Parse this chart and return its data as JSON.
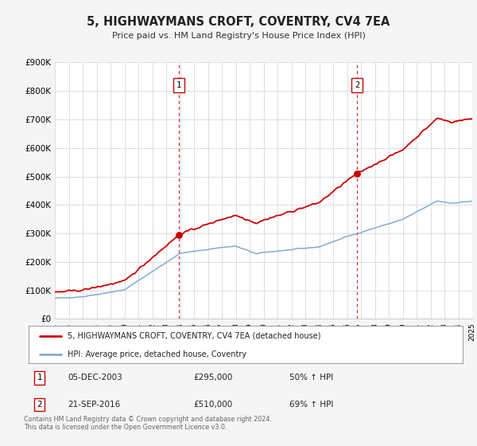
{
  "title": "5, HIGHWAYMANS CROFT, COVENTRY, CV4 7EA",
  "subtitle": "Price paid vs. HM Land Registry's House Price Index (HPI)",
  "background_color": "#f5f5f5",
  "plot_bg_color": "#ffffff",
  "grid_color": "#dddddd",
  "red_line_color": "#cc0000",
  "blue_line_color": "#88aacc",
  "sale1_year": 2003.92,
  "sale1_price": 295000,
  "sale1_label": "05-DEC-2003",
  "sale1_pct": "50% ↑ HPI",
  "sale2_year": 2016.72,
  "sale2_price": 510000,
  "sale2_label": "21-SEP-2016",
  "sale2_pct": "69% ↑ HPI",
  "xmin": 1995,
  "xmax": 2025,
  "ymin": 0,
  "ymax": 900000,
  "legend_label_red": "5, HIGHWAYMANS CROFT, COVENTRY, CV4 7EA (detached house)",
  "legend_label_blue": "HPI: Average price, detached house, Coventry",
  "footnote": "Contains HM Land Registry data © Crown copyright and database right 2024.\nThis data is licensed under the Open Government Licence v3.0."
}
